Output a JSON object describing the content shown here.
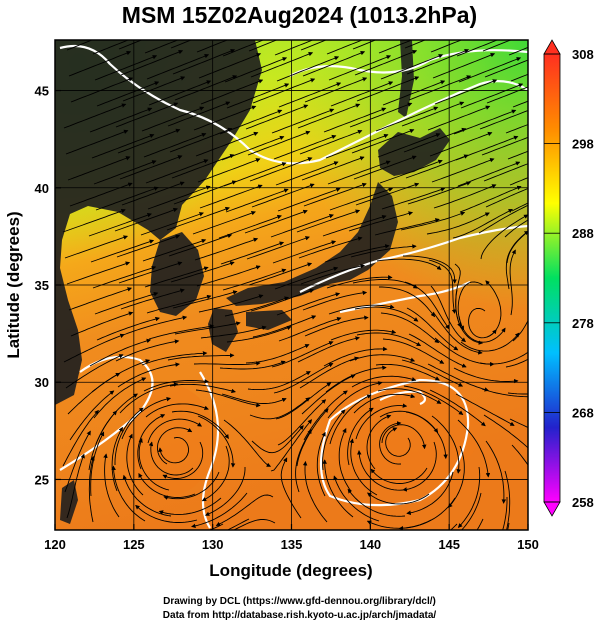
{
  "title": "MSM 15Z02Aug2024 (1013.2hPa)",
  "chart_data": {
    "type": "map",
    "projection": "equirectangular",
    "field": "temperature with surface streamlines",
    "xlabel": "Longitude (degrees)",
    "ylabel": "Latitude  (degrees)",
    "xlim": [
      120,
      150
    ],
    "ylim": [
      22.4,
      47.6
    ],
    "xticks": [
      120,
      125,
      130,
      135,
      140,
      145,
      150
    ],
    "yticks": [
      25,
      30,
      35,
      40,
      45
    ],
    "grid": true,
    "colorbar": {
      "min": 258,
      "max": 308,
      "ticks": [
        308,
        298,
        288,
        278,
        268,
        258
      ],
      "colors": [
        "#ff00ff",
        "#2222cc",
        "#00bfff",
        "#00e060",
        "#ffff00",
        "#ff8c00",
        "#ff3020"
      ]
    },
    "contour_color": "#ffffff",
    "land_color": "#1a1a1a"
  },
  "credits": {
    "line1": "Drawing by DCL (https://www.gfd-dennou.org/library/dcl/)",
    "line2": "Data from http://database.rish.kyoto-u.ac.jp/arch/jmadata/"
  }
}
